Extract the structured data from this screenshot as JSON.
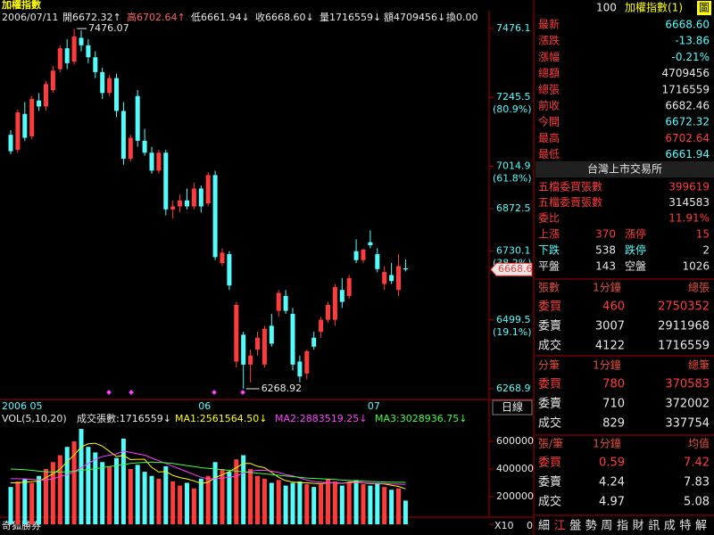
{
  "header": {
    "title": "加權指數",
    "date": "2006/07/11",
    "open": "開6672.32↑",
    "high": "高6702.64↑",
    "low": "低6661.94↓",
    "close": "收6668.60↓",
    "volume": "量1716559↓",
    "amount": "額4709456↓",
    "turnover": "換0.00"
  },
  "footer": {
    "brand": "奇狐勝券"
  },
  "chart_data": [
    {
      "type": "candlestick",
      "period": "日線",
      "categories": [
        "2006 05",
        null,
        null,
        null,
        null,
        null,
        null,
        null,
        null,
        null,
        null,
        null,
        null,
        null,
        null,
        null,
        null,
        null,
        null,
        null,
        null,
        null,
        null,
        null,
        null,
        null,
        null,
        "06",
        null,
        null,
        null,
        null,
        null,
        null,
        null,
        null,
        null,
        null,
        null,
        null,
        null,
        null,
        null,
        null,
        null,
        null,
        null,
        null,
        null,
        null,
        null,
        "07",
        null,
        null,
        null,
        null,
        null
      ],
      "open": [
        7120,
        7070,
        7190,
        7115,
        7235,
        7215,
        7270,
        7340,
        7410,
        7365,
        7445,
        7420,
        7380,
        7330,
        7260,
        7310,
        7200,
        7040,
        7250,
        7100,
        7060,
        7000,
        7060,
        6870,
        6880,
        6900,
        6880,
        6940,
        6890,
        6985,
        6690,
        6720,
        6360,
        6450,
        6350,
        6400,
        6350,
        6480,
        6530,
        6580,
        6520,
        6360,
        6320,
        6440,
        6460,
        6500,
        6500,
        6600,
        6580,
        6730,
        6700,
        6760,
        6720,
        6620,
        6650,
        6600,
        6672.32
      ],
      "high": [
        7135,
        7205,
        7230,
        7250,
        7260,
        7300,
        7350,
        7420,
        7440,
        7476.07,
        7470,
        7440,
        7400,
        7345,
        7320,
        7325,
        7230,
        7120,
        7270,
        7140,
        7080,
        7070,
        7070,
        6900,
        6920,
        6940,
        6960,
        6950,
        6995,
        7000,
        6740,
        6730,
        6560,
        6460,
        6400,
        6460,
        6480,
        6520,
        6600,
        6600,
        6540,
        6380,
        6400,
        6460,
        6510,
        6560,
        6620,
        6640,
        6650,
        6770,
        6740,
        6800,
        6740,
        6680,
        6690,
        6720,
        6702.64
      ],
      "low": [
        7055,
        7060,
        7100,
        7105,
        7200,
        7200,
        7260,
        7330,
        7340,
        7355,
        7400,
        7360,
        7310,
        7240,
        7250,
        7180,
        7020,
        7030,
        7080,
        7050,
        6990,
        6990,
        6850,
        6840,
        6860,
        6870,
        6870,
        6860,
        6880,
        6700,
        6680,
        6600,
        6340,
        6268.92,
        6290,
        6380,
        6340,
        6410,
        6510,
        6520,
        6330,
        6290,
        6300,
        6400,
        6440,
        6490,
        6480,
        6540,
        6570,
        6690,
        6690,
        6740,
        6660,
        6600,
        6620,
        6580,
        6661.94
      ],
      "close": [
        7065,
        7195,
        7110,
        7240,
        7215,
        7290,
        7335,
        7410,
        7360,
        7450,
        7420,
        7380,
        7330,
        7260,
        7310,
        7200,
        7040,
        7110,
        7100,
        7060,
        7000,
        7060,
        6870,
        6880,
        6900,
        6880,
        6940,
        6880,
        6985,
        6710,
        6725,
        6615,
        6550,
        6350,
        6380,
        6440,
        6470,
        6420,
        6590,
        6530,
        6350,
        6310,
        6395,
        6410,
        6500,
        6550,
        6610,
        6560,
        6640,
        6700,
        6735,
        6750,
        6670,
        6660,
        6630,
        6680,
        6668.6
      ],
      "up_color": "#ff3c3c",
      "down_color": "#54fcfc",
      "ylim": [
        6233,
        7530
      ],
      "yticks": [
        6268.9,
        6499.5,
        6730.1,
        6872.5,
        7014.9,
        7245.5,
        7476.1
      ],
      "ytick_notes": [
        null,
        "(19.1%)",
        "(38.2%)",
        null,
        "(61.8%)",
        "(80.9%)",
        null
      ]
    },
    {
      "type": "bar",
      "title": "VOL(5,10,20)",
      "volume_label": "成交張數:1716559↓",
      "scale_note": "X10",
      "values": [
        270000,
        310000,
        330000,
        300000,
        350000,
        400000,
        450000,
        500000,
        560000,
        600000,
        690000,
        560000,
        520000,
        450000,
        420000,
        480000,
        620000,
        400000,
        430000,
        380000,
        350000,
        330000,
        420000,
        310000,
        280000,
        300000,
        260000,
        330000,
        350000,
        450000,
        400000,
        380000,
        470000,
        500000,
        400000,
        350000,
        330000,
        300000,
        320000,
        280000,
        300000,
        310000,
        290000,
        270000,
        290000,
        330000,
        310000,
        280000,
        300000,
        320000,
        290000,
        280000,
        300000,
        270000,
        250000,
        260000,
        171656
      ],
      "series": [
        {
          "name": "MA1:2561564.50↓",
          "color": "#ffff00",
          "values": [
            300000,
            300000,
            305000,
            310000,
            312000,
            338000,
            366000,
            400000,
            452000,
            502000,
            560000,
            582000,
            586000,
            566000,
            528000,
            490000,
            498000,
            468000,
            470000,
            470000,
            412000,
            378000,
            382000,
            354000,
            338000,
            328000,
            314000,
            296000,
            304000,
            338000,
            358000,
            382000,
            410000,
            440000,
            440000,
            420000,
            410000,
            376000,
            340000,
            316000,
            306000,
            302000,
            300000,
            296000,
            294000,
            300000,
            300000,
            296000,
            306000,
            308000,
            300000,
            294000,
            294000,
            292000,
            282000,
            274000,
            256156
          ]
        },
        {
          "name": "MA2:2883519.25↓",
          "color": "#ff40ff",
          "values": [
            330000,
            330000,
            328000,
            325000,
            322000,
            320000,
            330000,
            345000,
            360000,
            380000,
            410000,
            440000,
            470000,
            490000,
            500000,
            510000,
            530000,
            520000,
            510000,
            500000,
            480000,
            460000,
            440000,
            420000,
            400000,
            380000,
            360000,
            340000,
            330000,
            330000,
            335000,
            340000,
            350000,
            370000,
            385000,
            390000,
            390000,
            385000,
            375000,
            360000,
            350000,
            335000,
            320000,
            310000,
            305000,
            300000,
            300000,
            298000,
            300000,
            303000,
            300000,
            298000,
            296000,
            295000,
            292000,
            290000,
            288352
          ]
        },
        {
          "name": "MA3:3028936.75↓",
          "color": "#40ff40",
          "values": [
            400000,
            398000,
            395000,
            390000,
            385000,
            380000,
            378000,
            378000,
            380000,
            384000,
            390000,
            396000,
            402000,
            410000,
            418000,
            425000,
            432000,
            440000,
            445000,
            448000,
            450000,
            448000,
            445000,
            440000,
            432000,
            425000,
            418000,
            410000,
            405000,
            400000,
            395000,
            390000,
            385000,
            380000,
            375000,
            370000,
            365000,
            360000,
            355000,
            350000,
            345000,
            340000,
            335000,
            332000,
            330000,
            327000,
            324000,
            320000,
            318000,
            315000,
            312000,
            310000,
            308000,
            306000,
            305000,
            304000,
            302894
          ]
        }
      ],
      "ylim": [
        0,
        813000
      ],
      "yticks": [
        0,
        200000,
        400000,
        600000
      ]
    }
  ],
  "panel": {
    "code": "100",
    "name": "加權指數(1)",
    "icon": "圖",
    "quote": [
      {
        "label": "最新",
        "value": "6668.60",
        "color": "#54fcfc"
      },
      {
        "label": "漲跌",
        "value": "-13.86",
        "color": "#54fcfc"
      },
      {
        "label": "漲幅",
        "value": "-0.21%",
        "color": "#54fcfc"
      },
      {
        "label": "總額",
        "value": "4709456",
        "color": "#e8e8e8"
      },
      {
        "label": "總張",
        "value": "1716559",
        "color": "#e8e8e8"
      },
      {
        "label": "前收",
        "value": "6682.46",
        "color": "#e8e8e8"
      },
      {
        "label": "今開",
        "value": "6672.32",
        "color": "#54fcfc"
      },
      {
        "label": "最高",
        "value": "6702.64",
        "color": "#ff3c3c"
      },
      {
        "label": "最低",
        "value": "6661.94",
        "color": "#54fcfc"
      }
    ],
    "exchange": "台灣上市交易所",
    "orders": [
      {
        "label": "五檔委買張數",
        "value": "399619",
        "color": "#ff3c3c"
      },
      {
        "label": "五檔委賣張數",
        "value": "314583",
        "color": "#e8e8e8"
      },
      {
        "label": "委比",
        "value": "11.91%",
        "color": "#ff3c3c"
      }
    ],
    "breadth": [
      [
        "上漲",
        "370",
        "漲停",
        "15"
      ],
      [
        "下跌",
        "538",
        "跌停",
        "2"
      ],
      [
        "平盤",
        "143",
        "空盤",
        "1026"
      ]
    ],
    "tables": [
      {
        "header": [
          "張數",
          "1分鐘",
          "總張"
        ],
        "rows": [
          [
            "委買",
            "460",
            "2750352"
          ],
          [
            "委賣",
            "3007",
            "2911968"
          ],
          [
            "成交",
            "4122",
            "1716559"
          ]
        ]
      },
      {
        "header": [
          "分筆",
          "1分鐘",
          "總筆"
        ],
        "rows": [
          [
            "委買",
            "780",
            "370583"
          ],
          [
            "委賣",
            "710",
            "372002"
          ],
          [
            "成交",
            "829",
            "337754"
          ]
        ]
      },
      {
        "header": [
          "張/筆",
          "1分鐘",
          "均值"
        ],
        "rows": [
          [
            "委買",
            "0.59",
            "7.42"
          ],
          [
            "委賣",
            "4.24",
            "7.83"
          ],
          [
            "成交",
            "4.97",
            "5.08"
          ]
        ]
      }
    ],
    "tabs": [
      "細",
      "江",
      "盤",
      "勢",
      "周",
      "指",
      "財",
      "訊",
      "成",
      "特",
      "解"
    ]
  }
}
